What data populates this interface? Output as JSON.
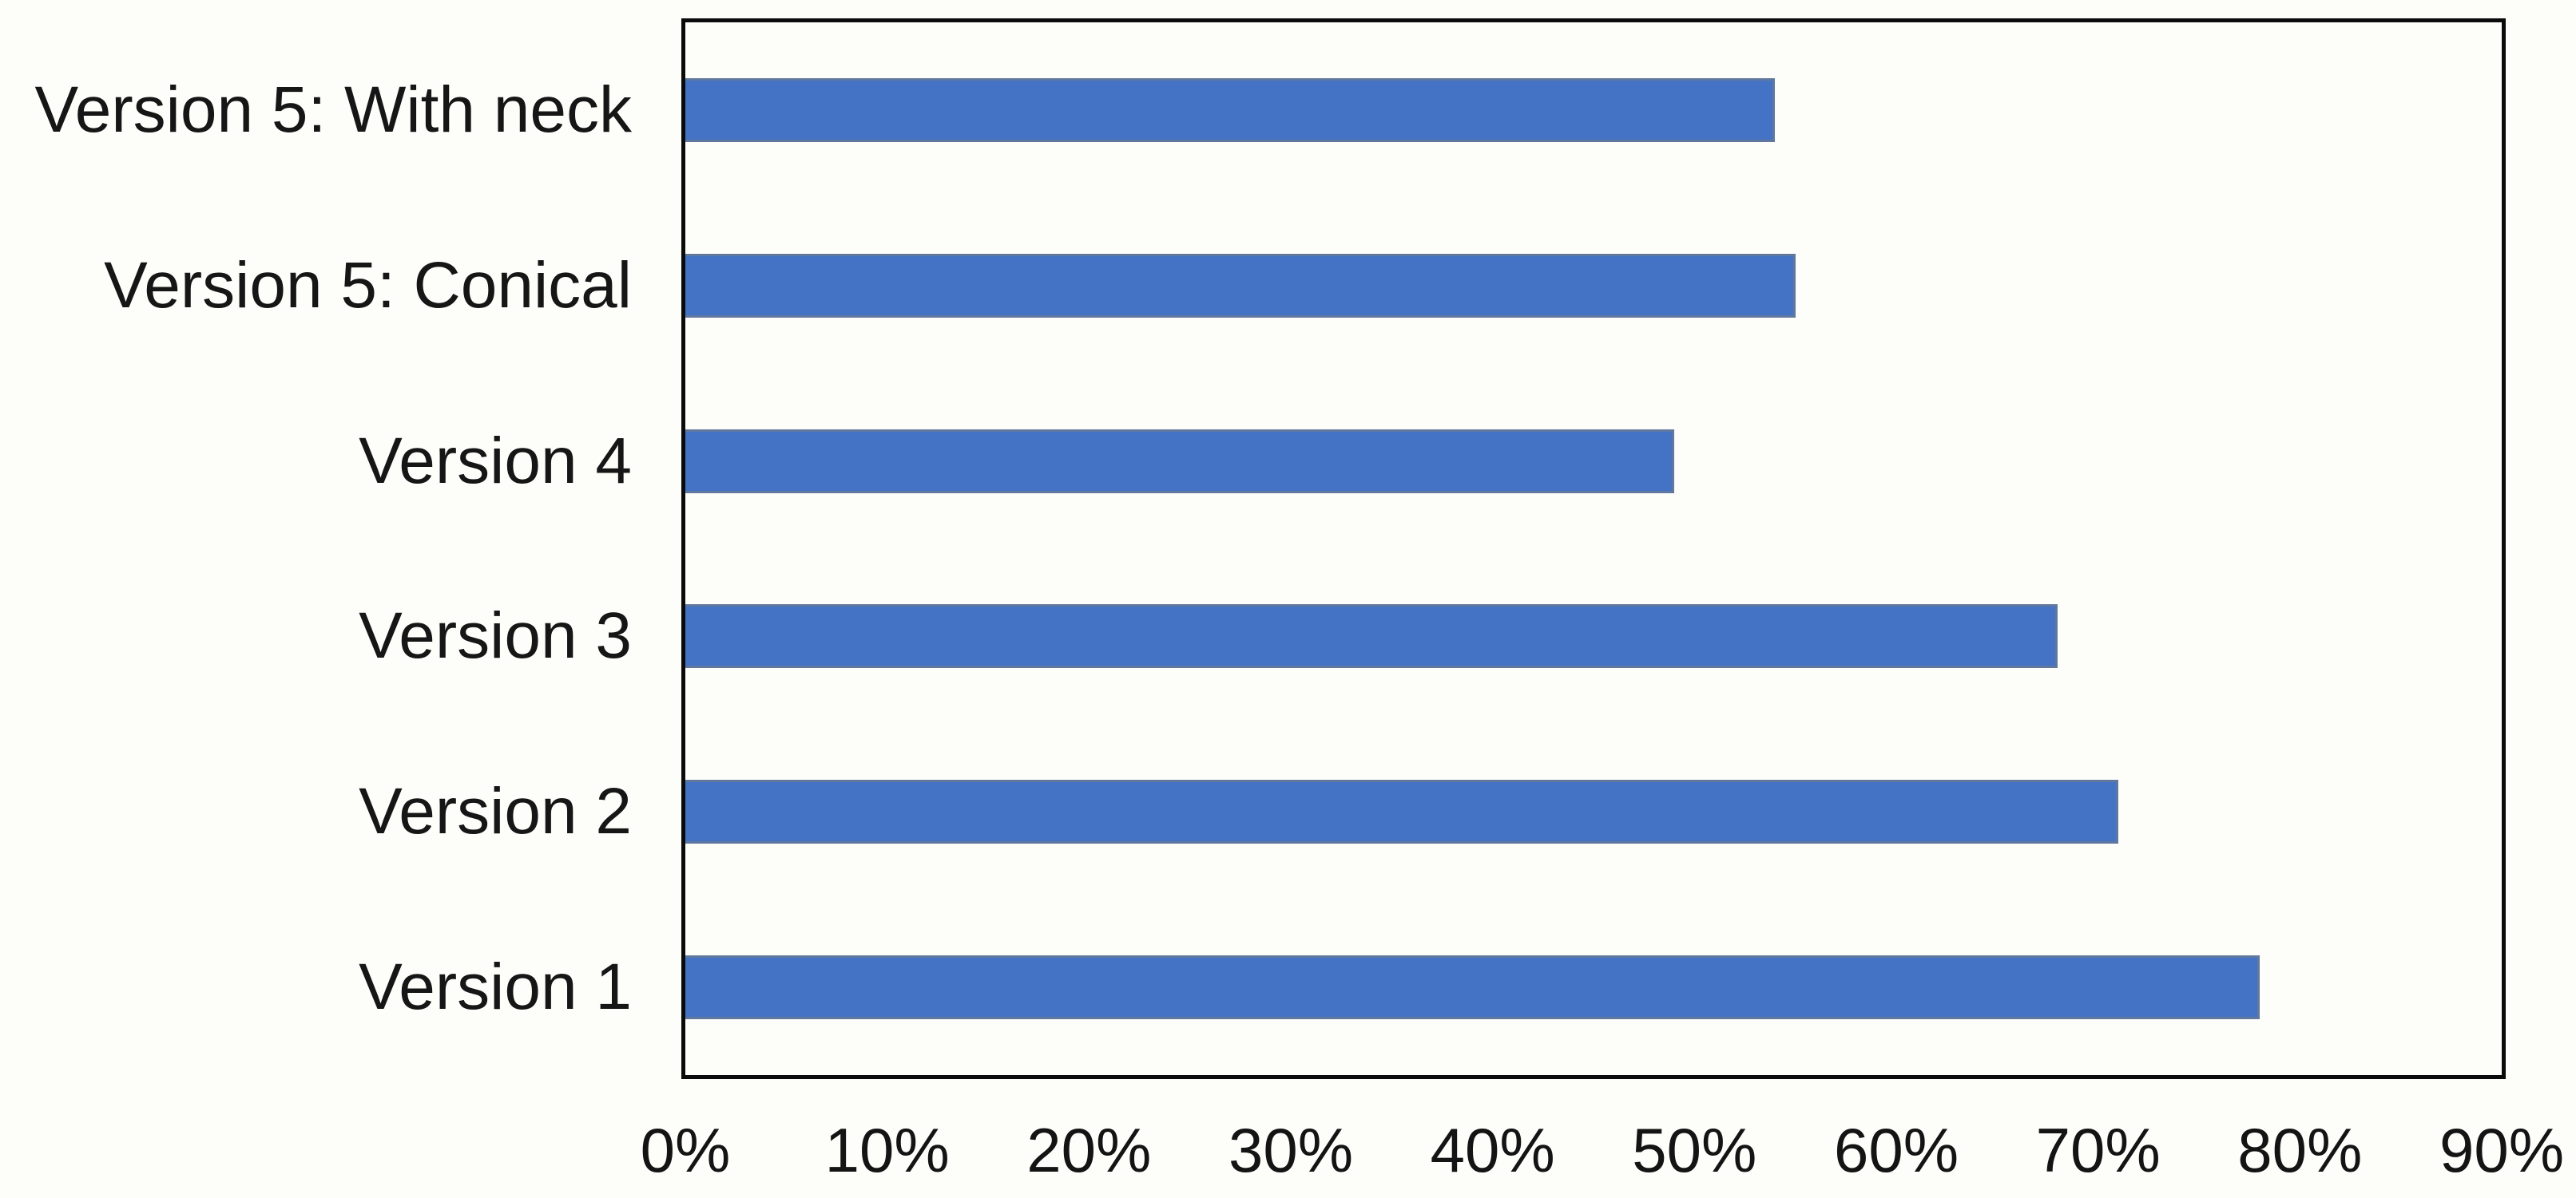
{
  "chart_data": {
    "type": "bar",
    "orientation": "horizontal",
    "title": "",
    "xlabel": "",
    "ylabel": "",
    "categories": [
      "Version 5: With neck",
      "Version 5: Conical",
      "Version 4",
      "Version 3",
      "Version 2",
      "Version 1"
    ],
    "values": [
      54,
      55,
      49,
      68,
      71,
      78
    ],
    "value_unit": "%",
    "x_axis": {
      "min": 0,
      "max": 90,
      "step": 10,
      "tick_labels": [
        "0%",
        "10%",
        "20%",
        "30%",
        "40%",
        "50%",
        "60%",
        "70%",
        "80%",
        "90%"
      ]
    },
    "grid": false,
    "legend": false,
    "colors": {
      "bar_fill": "#4472C4",
      "bar_edge": "#60789e",
      "plot_border": "#0b0b0b",
      "text": "#161616",
      "background": "#fdfdfa"
    }
  }
}
